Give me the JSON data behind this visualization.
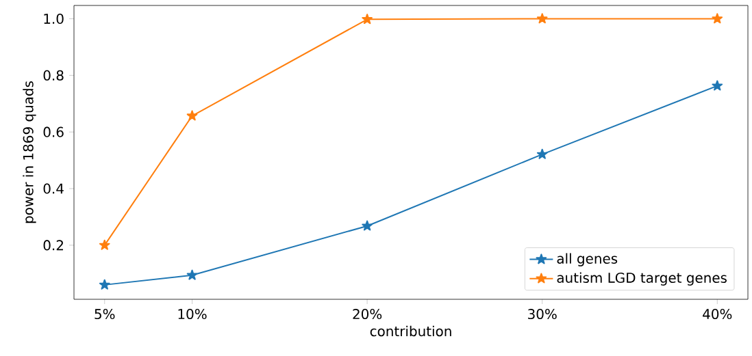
{
  "chart_data": {
    "type": "line",
    "xlabel": "contribution",
    "ylabel": "power in 1869 quads",
    "x": [
      5,
      10,
      20,
      30,
      40
    ],
    "series": [
      {
        "name": "all genes",
        "color": "#1f77b4",
        "values": [
          0.06,
          0.094,
          0.268,
          0.521,
          0.763
        ]
      },
      {
        "name": "autism LGD target genes",
        "color": "#ff7f0e",
        "values": [
          0.2,
          0.657,
          0.998,
          1.0,
          1.0
        ]
      }
    ],
    "xlim": [
      3.25,
      41.75
    ],
    "ylim": [
      0.009,
      1.047
    ],
    "xticks": [
      {
        "value": 5,
        "label": "5%"
      },
      {
        "value": 10,
        "label": "10%"
      },
      {
        "value": 20,
        "label": "20%"
      },
      {
        "value": 30,
        "label": "30%"
      },
      {
        "value": 40,
        "label": "40%"
      }
    ],
    "yticks": [
      0.2,
      0.4,
      0.6,
      {
        "value": 0.8,
        "label": "0.8"
      },
      {
        "value": 1,
        "label": "1.0"
      }
    ],
    "grid": false,
    "legend": "bottom right",
    "marker": "star"
  }
}
